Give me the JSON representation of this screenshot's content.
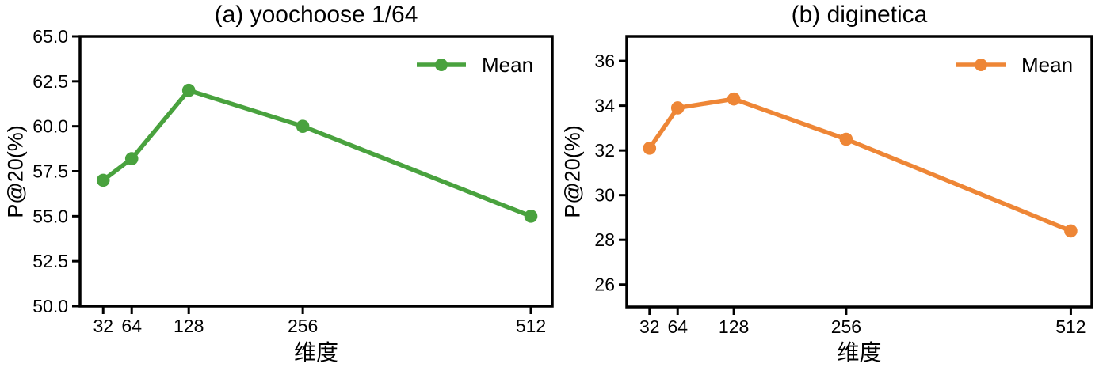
{
  "chart_data": [
    {
      "type": "line",
      "title": "(a) yoochoose 1/64",
      "xlabel": "维度",
      "ylabel": "P@20(%)",
      "legend_label": "Mean",
      "legend_position": "upper right",
      "color": "#49a23e",
      "grid": false,
      "x": [
        32,
        64,
        128,
        256,
        512
      ],
      "values": [
        57.0,
        58.2,
        62.0,
        60.0,
        55.0
      ],
      "xlim": [
        6,
        536
      ],
      "ylim": [
        50,
        65
      ],
      "xtick_labels": [
        "32",
        "64",
        "128",
        "256",
        "512"
      ],
      "ytick_values": [
        50,
        52.5,
        55,
        57.5,
        60,
        62.5,
        65
      ],
      "ytick_labels": [
        "50.0",
        "52.5",
        "55.0",
        "57.5",
        "60.0",
        "62.5",
        "65.0"
      ]
    },
    {
      "type": "line",
      "title": "(b) diginetica",
      "xlabel": "维度",
      "ylabel": "P@20(%)",
      "legend_label": "Mean",
      "legend_position": "upper right",
      "color": "#ee8636",
      "grid": false,
      "x": [
        32,
        64,
        128,
        256,
        512
      ],
      "values": [
        32.1,
        33.9,
        34.3,
        32.5,
        28.4
      ],
      "xlim": [
        6,
        536
      ],
      "ylim": [
        25,
        37.1
      ],
      "xtick_labels": [
        "32",
        "64",
        "128",
        "256",
        "512"
      ],
      "ytick_values": [
        26,
        28,
        30,
        32,
        34,
        36
      ],
      "ytick_labels": [
        "26",
        "28",
        "30",
        "32",
        "34",
        "36"
      ]
    }
  ]
}
